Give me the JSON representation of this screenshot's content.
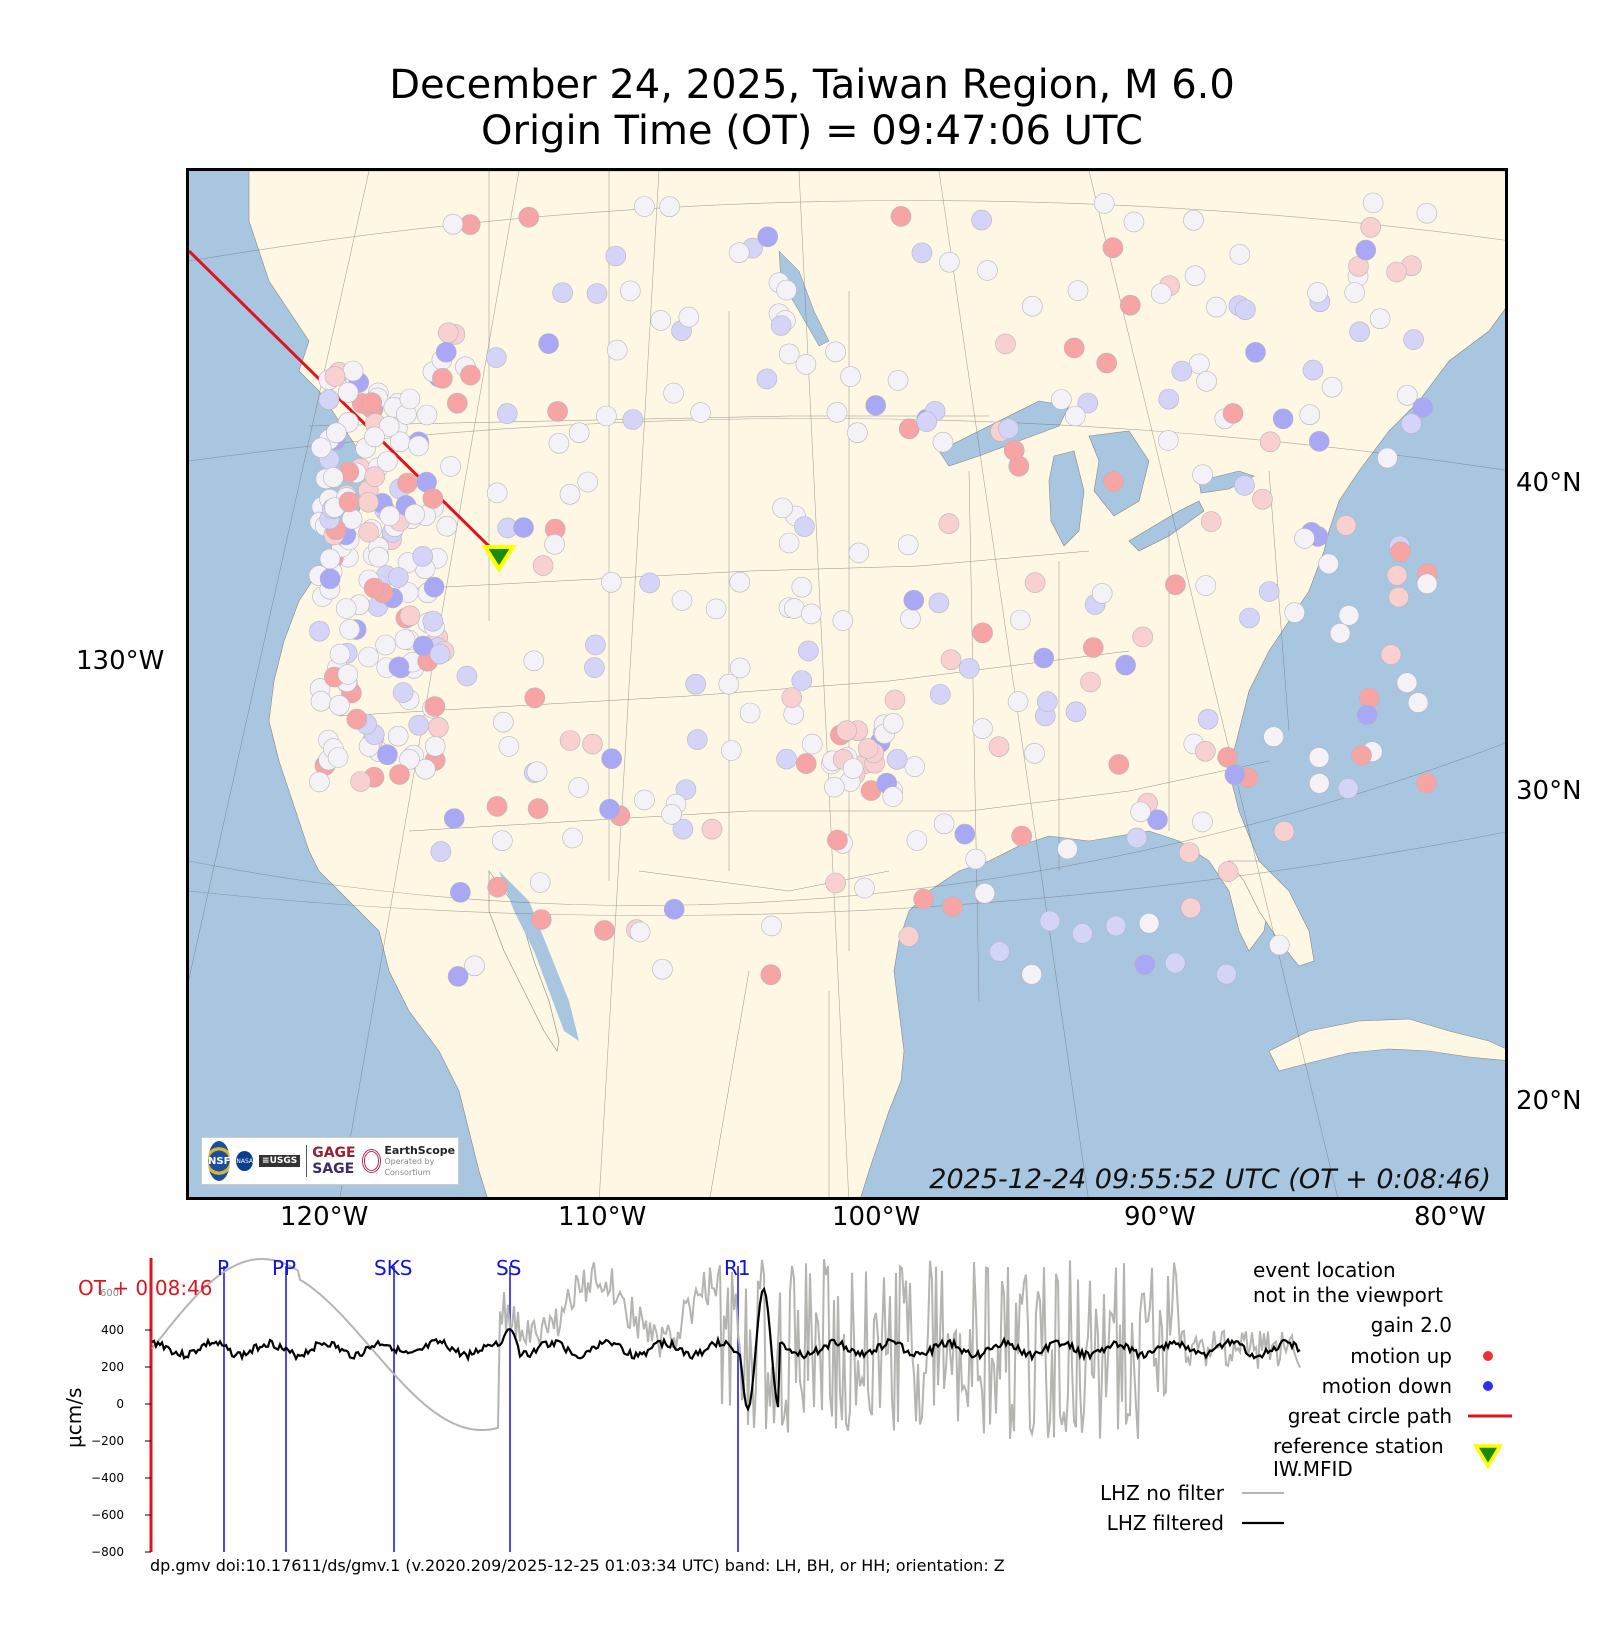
{
  "title": {
    "line1": "December 24, 2025, Taiwan Region, M 6.0",
    "line2": "Origin Time (OT) = 09:47:06 UTC"
  },
  "map": {
    "timestamp": "2025-12-24 09:55:52 UTC (OT + 0:08:46)",
    "lat_labels": [
      "40°N",
      "30°N",
      "20°N"
    ],
    "lon_label_left": "130°W",
    "lon_labels_bottom": [
      "120°W",
      "110°W",
      "100°W",
      "90°W",
      "80°W"
    ],
    "colors": {
      "ocean": "#a9c6e0",
      "land": "#fdf7e4",
      "path": "#e0141e",
      "station_marker": "#1a8a10",
      "station_outline": "#ffff00",
      "motion_up": "#f03030",
      "motion_down": "#3030f0"
    },
    "logos": {
      "gage": "GAGE",
      "sage": "SAGE",
      "earthscope": "EarthScope",
      "consortium": "Consortium",
      "operated_by": "Operated by",
      "nsf": "NSF",
      "nasa": "NASA",
      "usgs": "≡USGS"
    }
  },
  "waveform": {
    "ot_label": "OT + 0:08:46",
    "phases": [
      "P",
      "PP",
      "SKS",
      "SS",
      "R1"
    ],
    "y_axis_label": "μcm/s",
    "y_ticks": [
      "400",
      "200",
      "0",
      "−200",
      "−400",
      "−600",
      "−800"
    ],
    "y_tick_partial": "600"
  },
  "legend": {
    "event_note_1": "event location",
    "event_note_2": "not in the viewport",
    "gain": "gain  2.0",
    "motion_up": "motion up",
    "motion_down": "motion down",
    "great_circle": "great circle path",
    "ref_station_1": "reference station",
    "ref_station_2": "IW.MFID",
    "lhz_nofilter": "LHZ no filter",
    "lhz_filtered": "LHZ filtered"
  },
  "footer": "dp.gmv doi:10.17611/ds/gmv.1 (v.2020.209/2025-12-25 01:03:34 UTC) band: LH, BH, or HH; orientation: Z"
}
